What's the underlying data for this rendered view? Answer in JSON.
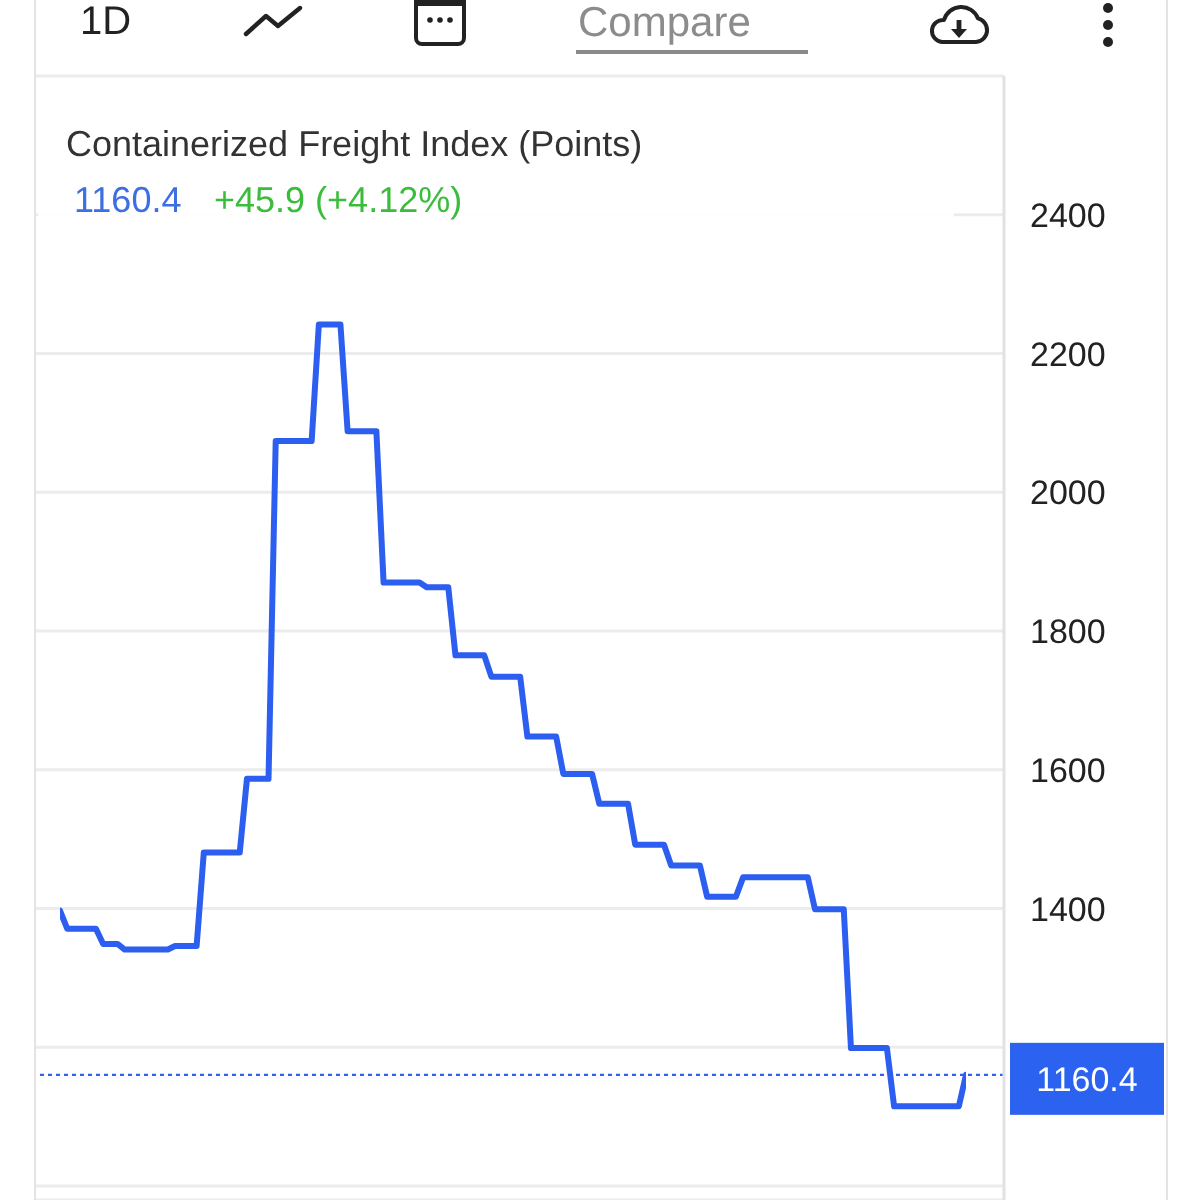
{
  "chart_data": {
    "type": "line",
    "title": "Containerized Freight Index (Points)",
    "annotations": [
      "1D",
      "Compare",
      "1160.4",
      "+45.9 (+4.12%)"
    ],
    "categories": [
      null,
      null,
      null,
      null,
      null,
      null,
      null,
      null,
      null,
      null,
      null,
      null,
      null,
      null,
      null,
      null,
      null,
      null,
      null,
      null,
      null,
      null,
      null,
      null,
      null,
      null,
      null,
      null,
      null,
      null,
      null,
      null,
      null,
      null,
      null,
      null,
      null,
      null,
      null,
      null,
      null,
      null,
      null,
      null,
      null,
      null,
      null,
      null,
      null,
      null,
      null,
      null,
      null,
      null,
      null,
      null,
      null,
      null,
      null,
      null,
      null,
      null,
      null,
      null,
      null,
      null,
      null,
      null,
      null,
      null,
      null,
      null,
      null,
      null,
      null,
      null,
      null,
      null,
      null,
      null,
      null,
      null,
      null,
      null,
      null,
      null,
      null,
      null,
      null,
      null,
      null,
      null,
      null,
      null,
      null,
      null,
      null,
      null,
      null,
      null,
      null,
      null,
      null,
      null,
      null,
      null,
      null,
      null,
      null,
      null,
      null,
      null,
      null,
      null,
      null,
      null,
      null,
      null,
      null,
      null,
      null,
      null,
      null,
      null,
      null,
      null,
      null
    ],
    "series": [
      {
        "color": "#2c5ef0",
        "values": [
          1397,
          1371,
          1371,
          1371,
          1371,
          1371,
          1349,
          1349,
          1349,
          1341,
          1341,
          1341,
          1341,
          1341,
          1341,
          1341,
          1346,
          1346,
          1346,
          1346,
          1481,
          1481,
          1481,
          1481,
          1481,
          1481,
          1587,
          1587,
          1587,
          1587,
          2074,
          2074,
          2074,
          2074,
          2074,
          2074,
          2242,
          2242,
          2242,
          2242,
          2088,
          2088,
          2088,
          2088,
          2088,
          1870,
          1870,
          1870,
          1870,
          1870,
          1870,
          1863,
          1863,
          1863,
          1863,
          1765,
          1765,
          1765,
          1765,
          1765,
          1734,
          1734,
          1734,
          1734,
          1734,
          1648,
          1648,
          1648,
          1648,
          1648,
          1594,
          1594,
          1594,
          1594,
          1594,
          1551,
          1551,
          1551,
          1551,
          1551,
          1492,
          1492,
          1492,
          1492,
          1492,
          1462,
          1462,
          1462,
          1462,
          1462,
          1417,
          1417,
          1417,
          1417,
          1417,
          1445,
          1445,
          1445,
          1445,
          1445,
          1445,
          1445,
          1445,
          1445,
          1445,
          1399,
          1399,
          1399,
          1399,
          1399,
          1199,
          1199,
          1199,
          1199,
          1199,
          1199,
          1115,
          1115,
          1115,
          1115,
          1115,
          1115,
          1115,
          1115,
          1115,
          1115,
          1160.4
        ]
      }
    ],
    "ylim": [
      980,
      2600
    ],
    "yticks": [
      {
        "value": 1000,
        "label": null
      },
      {
        "value": 1200,
        "label": null
      },
      1400,
      1600,
      1800,
      2000,
      2200,
      2400
    ],
    "grid": "y",
    "tick_labels": "y",
    "ref_lines": [
      {
        "axis": "y",
        "value": 1160.4,
        "label": "1160.4",
        "color": "#2c62f0",
        "line_style": "dotted"
      }
    ]
  }
}
